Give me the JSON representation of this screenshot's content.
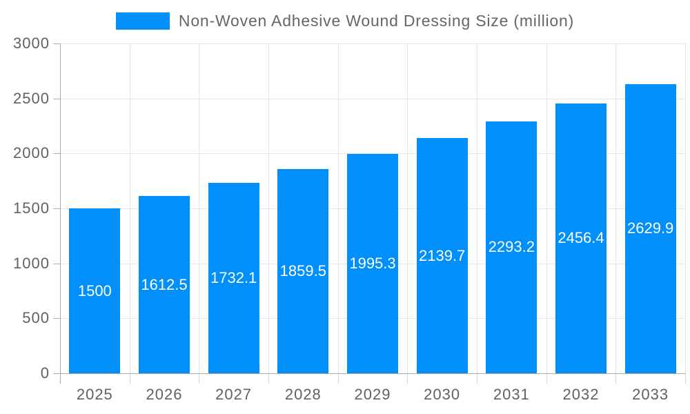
{
  "chart_data": {
    "type": "bar",
    "title": "Non-Woven Adhesive Wound Dressing Size (million)",
    "categories": [
      "2025",
      "2026",
      "2027",
      "2028",
      "2029",
      "2030",
      "2031",
      "2032",
      "2033"
    ],
    "values": [
      1500,
      1612.5,
      1732.1,
      1859.5,
      1995.3,
      2139.7,
      2293.2,
      2456.4,
      2629.9
    ],
    "value_labels": [
      "1500",
      "1612.5",
      "1732.1",
      "1859.5",
      "1995.3",
      "2139.7",
      "2293.2",
      "2456.4",
      "2629.9"
    ],
    "xlabel": "",
    "ylabel": "",
    "ylim": [
      0,
      3000
    ],
    "ytick_step": 500,
    "ytick_labels": [
      "0",
      "500",
      "1000",
      "1500",
      "2000",
      "2500",
      "3000"
    ],
    "legend_position": "top",
    "grid": true,
    "colors": {
      "bar": "#008FFB",
      "bar_label": "#ffffff",
      "axis_label": "#616161",
      "legend_label": "#666666",
      "gridline": "#e6e6e6",
      "axis_line": "#a9a9a9"
    }
  }
}
